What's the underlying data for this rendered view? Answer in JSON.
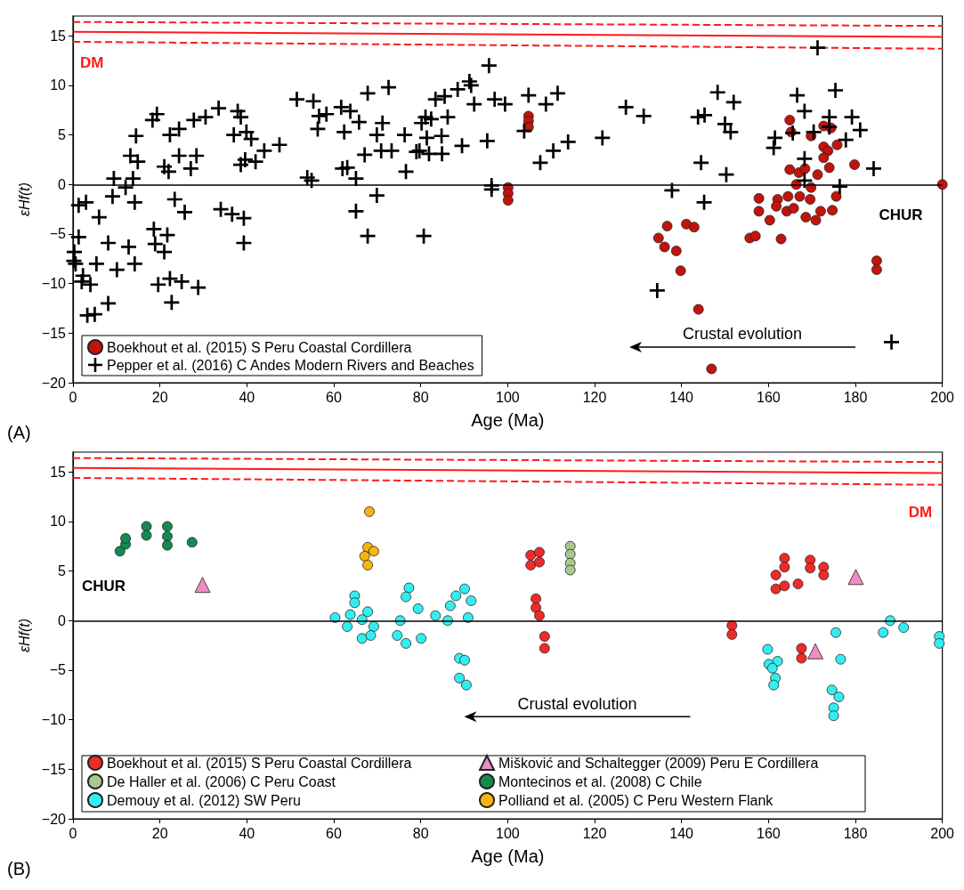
{
  "chart_data": [
    {
      "type": "scatter",
      "xlabel": "Age (Ma)",
      "ylabel": "εHf(t)",
      "xlim": [
        0,
        200
      ],
      "ylim": [
        -20,
        17
      ],
      "xticks": [
        0,
        20,
        40,
        60,
        80,
        100,
        120,
        140,
        160,
        180,
        200
      ],
      "yticks": [
        -20,
        -15,
        -10,
        -5,
        0,
        5,
        10,
        15
      ],
      "legend": "bottom left",
      "ref_lines": [
        {
          "axis": "y",
          "value": 0,
          "color": "#000000",
          "label": "CHUR"
        }
      ],
      "annotations": [
        "Crustal evolution",
        "(A)"
      ],
      "series": [
        {
          "name": "Boekhout et al. (2015) S Peru Coastal Cordillera",
          "color": "#c0140c",
          "marker": "circle",
          "x": [
            164.9,
            165.2,
            172.7,
            174.4,
            169.8,
            175.8,
            172.7,
            173.7,
            172.7,
            164.9,
            179.8,
            174,
            171.3,
            167,
            168.4,
            166.4,
            169.8,
            157.8,
            162.1,
            164.5,
            167.2,
            169.6,
            175.6,
            157.8,
            161.8,
            164.2,
            165.8,
            168.6,
            170.9,
            172,
            174.7,
            160.3,
            155.7,
            157,
            162.9,
            136.7,
            141.1,
            142.9,
            134.7,
            136.1,
            138.8,
            139.8,
            184.9,
            184.9,
            143.9,
            146.9,
            200,
            104.8,
            104.8,
            104.8,
            100.1,
            100.1,
            100.1
          ],
          "values": [
            6.5,
            5.3,
            5.9,
            5.7,
            4.9,
            4,
            3.8,
            3.4,
            2.7,
            1.5,
            2,
            1.7,
            1,
            1.2,
            1.6,
            0,
            -0.3,
            -1.4,
            -1.5,
            -1.2,
            -1.2,
            -1.5,
            -1.2,
            -2.7,
            -2.2,
            -2.7,
            -2.4,
            -3.3,
            -3.6,
            -2.7,
            -2.6,
            -3.6,
            -5.4,
            -5.2,
            -5.5,
            -4.2,
            -4,
            -4.3,
            -5.4,
            -6.3,
            -6.7,
            -8.7,
            -7.7,
            -8.6,
            -12.6,
            -18.6,
            0,
            6.9,
            6.4,
            5.8,
            -0.3,
            -0.9,
            -1.6
          ]
        },
        {
          "name": "Pepper et al. (2016) C Andes Modern Rivers and Beaches",
          "color": "#000000",
          "marker": "cross",
          "x": [
            19.3,
            18.3,
            14.5,
            13.2,
            14.9,
            9.4,
            9.1,
            1.3,
            3,
            6,
            1.3,
            0.3,
            0.6,
            2.3,
            4,
            8.1,
            3.3,
            5,
            5.4,
            8.1,
            12.8,
            14.2,
            18.6,
            18.9,
            21.7,
            21,
            19.6,
            22.3,
            25,
            28.8,
            22.7,
            23.4,
            25.7,
            34,
            36.6,
            39.3,
            39.3,
            14.2,
            12.1,
            13.8,
            21,
            22,
            27.1,
            28.4,
            24.4,
            24.4,
            22.3,
            27.8,
            30.5,
            33.5,
            37.9,
            38.6,
            37,
            39.9,
            41,
            38.6,
            39.6,
            42,
            44,
            47.5,
            53.9,
            54.9,
            51.5,
            55.3,
            58.3,
            56.3,
            10.1,
            0.2,
            2,
            56.6,
            61.7,
            62.4,
            67.8,
            72.6,
            63.8,
            65.8,
            71.2,
            69.9,
            76.3,
            67.1,
            70.9,
            73.3,
            62,
            63.1,
            65.1,
            76.6,
            69.9,
            65.1,
            67.8,
            80.7,
            79,
            79.7,
            81.9,
            84.9,
            80.2,
            81.1,
            82.4,
            83.4,
            86.2,
            84.8,
            81.4,
            89.5,
            85.5,
            88.5,
            91.2,
            91.6,
            95.7,
            92.3,
            95.3,
            97,
            99.4,
            96.3,
            96.3,
            104.8,
            103.8,
            108.8,
            111.5,
            107.5,
            110.5,
            113.9,
            121.8,
            171.3,
            127.2,
            131.3,
            148.3,
            152,
            143.8,
            145.3,
            150,
            151.3,
            144.5,
            150.3,
            137.8,
            145.2,
            134.4,
            188.3,
            166.6,
            168.3,
            175.4,
            161.5,
            161.2,
            165.6,
            170.4,
            174,
            174,
            179.2,
            181.1,
            177.8,
            184.2,
            168.3,
            168.3,
            176.4
          ],
          "values": [
            7.1,
            6.5,
            4.9,
            2.9,
            2.3,
            0.6,
            -1.2,
            -2.1,
            -1.8,
            -3.3,
            -5.3,
            -6.8,
            -8,
            -9.2,
            -10.1,
            -12,
            -13.2,
            -13.1,
            -8,
            -5.9,
            -6.3,
            -8,
            -4.5,
            -6,
            -5.1,
            -6.8,
            -10.1,
            -9.5,
            -9.8,
            -10.4,
            -11.9,
            -1.5,
            -2.8,
            -2.5,
            -3,
            -3.4,
            -5.9,
            -1.8,
            -0.3,
            0.6,
            1.8,
            1.3,
            1.6,
            2.9,
            2.9,
            5.6,
            5,
            6.5,
            6.8,
            7.7,
            7.4,
            6.8,
            5,
            5.3,
            4.6,
            2,
            2.5,
            2.3,
            3.4,
            4,
            0.7,
            0.4,
            8.6,
            8.4,
            7.1,
            5.6,
            -8.6,
            -7.7,
            -9.8,
            6.9,
            7.8,
            5.3,
            9.2,
            9.8,
            7.4,
            6.3,
            6.2,
            5,
            5,
            3,
            3.4,
            3.4,
            1.6,
            1.7,
            0.6,
            1.3,
            -1.1,
            -2.7,
            -5.2,
            -5.2,
            3.3,
            3.4,
            3.1,
            3.1,
            6.2,
            6.8,
            6.6,
            8.6,
            6.8,
            4.9,
            4.7,
            3.9,
            8.9,
            9.6,
            10.4,
            10,
            12,
            8.1,
            4.4,
            8.6,
            8.1,
            -0.1,
            -0.5,
            9,
            5.4,
            8.1,
            9.2,
            2.2,
            3.4,
            4.3,
            4.7,
            13.8,
            7.8,
            6.9,
            9.3,
            8.3,
            6.8,
            7,
            6.1,
            5.3,
            2.2,
            1,
            -0.6,
            -1.8,
            -10.7,
            -15.9,
            9,
            7.4,
            9.5,
            4.7,
            3.7,
            5.2,
            5.3,
            6.8,
            5.8,
            6.8,
            5.5,
            4.5,
            1.6,
            2.6,
            0.4,
            -0.2
          ]
        },
        {
          "type": "line",
          "name": "DM",
          "color": "#ff1a1a",
          "marker": "none",
          "line_style": "solid",
          "x": [
            0,
            200
          ],
          "values": [
            15.4,
            14.9
          ]
        },
        {
          "type": "line",
          "color": "#ff1a1a",
          "marker": "none",
          "line_style": "dashed",
          "x": [
            0,
            200
          ],
          "values": [
            16.4,
            16
          ]
        },
        {
          "type": "line",
          "color": "#ff1a1a",
          "marker": "none",
          "line_style": "dashed",
          "x": [
            0,
            200
          ],
          "values": [
            14.4,
            13.7
          ]
        }
      ]
    },
    {
      "type": "scatter",
      "xlabel": "Age (Ma)",
      "ylabel": "εHf(t)",
      "xlim": [
        0,
        200
      ],
      "ylim": [
        -20,
        17
      ],
      "xticks": [
        0,
        20,
        40,
        60,
        80,
        100,
        120,
        140,
        160,
        180,
        200
      ],
      "yticks": [
        -20,
        -15,
        -10,
        -5,
        0,
        5,
        10,
        15
      ],
      "legend": "bottom left",
      "ref_lines": [
        {
          "axis": "y",
          "value": 0,
          "color": "#000000",
          "label": "CHUR"
        }
      ],
      "annotations": [
        "Crustal evolution",
        "(B)"
      ],
      "series": [
        {
          "name": "Boekhout et al. (2015) S Peru Coastal Cordillera",
          "color": "#ee2a2a",
          "marker": "circle",
          "x": [
            105.3,
            107.3,
            105.3,
            107.3,
            106.5,
            106.5,
            107.3,
            108.5,
            108.5,
            151.6,
            151.6,
            163.7,
            163.7,
            161.7,
            161.7,
            163.7,
            166.8,
            169.6,
            169.6,
            172.7,
            172.7,
            167.6,
            167.6
          ],
          "values": [
            6.6,
            6.9,
            5.6,
            5.9,
            2.2,
            1.3,
            0.5,
            -1.6,
            -2.8,
            -0.5,
            -1.4,
            6.3,
            5.4,
            4.6,
            3.2,
            3.5,
            3.7,
            6.1,
            5.3,
            5.4,
            4.6,
            -2.8,
            -3.8
          ]
        },
        {
          "name": "Mišković and Schaltegger (2009) Peru E Cordillera",
          "color": "#f08cc4",
          "marker": "triangle",
          "x": [
            29.8,
            170.8,
            180.1
          ],
          "values": [
            3.6,
            -3.1,
            4.4
          ]
        },
        {
          "name": "De Haller et al. (2006) C Peru Coast",
          "color": "#a8c98e",
          "marker": "circle",
          "x": [
            114.4,
            114.4,
            114.4,
            114.4
          ],
          "values": [
            7.5,
            6.7,
            5.8,
            5.1
          ]
        },
        {
          "name": "Montecinos et al. (2008) C Chile",
          "color": "#138a50",
          "marker": "circle",
          "x": [
            10.8,
            12.1,
            12.1,
            16.9,
            16.9,
            21.7,
            21.7,
            21.7,
            27.4
          ],
          "values": [
            7,
            7.7,
            8.3,
            9.5,
            8.6,
            9.5,
            8.5,
            7.6,
            7.9
          ]
        },
        {
          "name": "Demouy et al. (2012) SW Peru",
          "color": "#33eef0",
          "marker": "circle",
          "x": [
            60.3,
            64.8,
            64.8,
            63.8,
            66.5,
            69.2,
            66.5,
            68.5,
            67.8,
            63.1,
            77.3,
            76.6,
            79.4,
            80.1,
            74.6,
            75.3,
            76.6,
            90.1,
            91.6,
            88.1,
            86.8,
            86.2,
            90.9,
            83.4,
            88.9,
            90.1,
            88.9,
            90.5,
            159.8,
            162.1,
            160.1,
            160.9,
            161.6,
            161.2,
            175.5,
            176.6,
            174.6,
            176.2,
            175,
            175,
            188,
            186.4,
            191.1,
            199.3,
            199.3
          ],
          "values": [
            0.3,
            2.5,
            1.8,
            0.6,
            0.1,
            -0.6,
            -1.8,
            -1.5,
            0.9,
            -0.6,
            3.3,
            2.4,
            1.2,
            -1.8,
            -1.5,
            0,
            -2.3,
            3.2,
            2,
            2.5,
            1.5,
            0,
            0.3,
            0.5,
            -3.8,
            -4,
            -5.8,
            -6.5,
            -2.9,
            -4.1,
            -4.4,
            -4.8,
            -5.8,
            -6.5,
            -1.2,
            -3.9,
            -7,
            -7.7,
            -8.8,
            -9.6,
            0,
            -1.2,
            -0.7,
            -1.6,
            -2.3
          ]
        },
        {
          "name": "Polliand et al. (2005) C Peru Western Flank",
          "color": "#f5b50c",
          "marker": "circle",
          "x": [
            68.2,
            67.8,
            69.2,
            67.1,
            67.8
          ],
          "values": [
            11,
            7.4,
            7,
            6.5,
            5.6
          ]
        },
        {
          "type": "line",
          "name": "DM",
          "color": "#ff1a1a",
          "marker": "none",
          "line_style": "solid",
          "x": [
            0,
            200
          ],
          "values": [
            15.4,
            14.9
          ]
        },
        {
          "type": "line",
          "color": "#ff1a1a",
          "marker": "none",
          "line_style": "dashed",
          "x": [
            0,
            200
          ],
          "values": [
            16.4,
            16
          ]
        },
        {
          "type": "line",
          "color": "#ff1a1a",
          "marker": "none",
          "line_style": "dashed",
          "x": [
            0,
            200
          ],
          "values": [
            14.4,
            13.7
          ]
        }
      ]
    }
  ]
}
